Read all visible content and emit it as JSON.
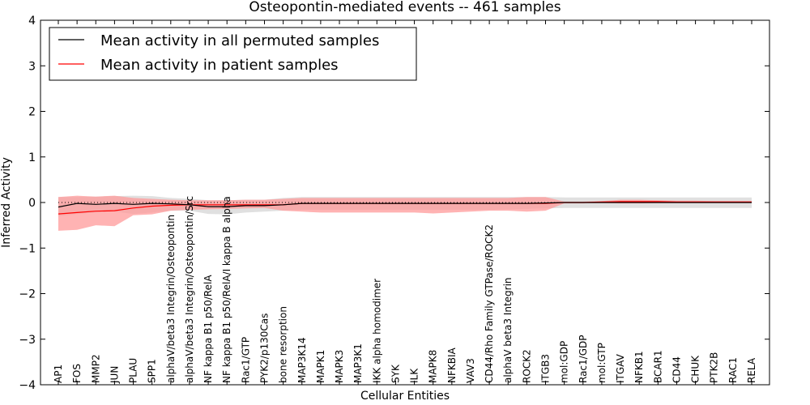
{
  "chart_data": {
    "type": "line",
    "title": "Osteopontin-mediated events -- 461 samples",
    "xlabel": "Cellular Entities",
    "ylabel": "Inferred Activity",
    "ylim": [
      -4,
      4
    ],
    "yticks": [
      -4,
      -3,
      -2,
      -1,
      0,
      1,
      2,
      3,
      4
    ],
    "ytick_labels": [
      "−4",
      "−3",
      "−2",
      "−1",
      "0",
      "1",
      "2",
      "3",
      "4"
    ],
    "legend_position": "top-left",
    "categories": [
      "AP1",
      "FOS",
      "MMP2",
      "JUN",
      "PLAU",
      "SPP1",
      "alphaV/beta3 Integrin/Osteopontin",
      "alphaV/beta3 Integrin/Osteopontin/Src",
      "NF kappa B1 p50/RelA",
      "NF kappa B1 p50/RelA/I kappa B alpha",
      "Rac1/GTP",
      "PYK2/p130Cas",
      "bone resorption",
      "MAP3K14",
      "MAPK1",
      "MAPK3",
      "MAP3K1",
      "IKK alpha homodimer",
      "SYK",
      "ILK",
      "MAPK8",
      "NFKBIA",
      "VAV3",
      "CD44/Rho Family GTPase/ROCK2",
      "alphaV beta3 Integrin",
      "ROCK2",
      "ITGB3",
      "mol:GDP",
      "Rac1/GDP",
      "mol:GTP",
      "ITGAV",
      "NFKB1",
      "BCAR1",
      "CD44",
      "CHUK",
      "PTK2B",
      "RAC1",
      "RELA"
    ],
    "series": [
      {
        "name": "Mean activity in all permuted samples",
        "color": "#000000",
        "band_color": "#bbbbbb",
        "values": [
          -0.1,
          -0.02,
          -0.04,
          -0.02,
          -0.04,
          -0.02,
          -0.03,
          -0.05,
          -0.09,
          -0.09,
          -0.07,
          -0.07,
          -0.05,
          -0.02,
          -0.02,
          -0.02,
          -0.02,
          -0.02,
          -0.02,
          -0.02,
          -0.02,
          -0.02,
          -0.02,
          -0.02,
          -0.02,
          -0.02,
          -0.01,
          0.0,
          0.0,
          0.0,
          0.0,
          0.0,
          0.0,
          0.0,
          0.0,
          0.0,
          0.0,
          0.0
        ],
        "band_upper": [
          0.12,
          0.12,
          0.13,
          0.14,
          0.15,
          0.14,
          0.1,
          0.08,
          0.05,
          0.05,
          0.06,
          0.06,
          0.1,
          0.12,
          0.12,
          0.12,
          0.12,
          0.12,
          0.12,
          0.12,
          0.12,
          0.12,
          0.12,
          0.12,
          0.12,
          0.12,
          0.12,
          0.11,
          0.11,
          0.11,
          0.11,
          0.11,
          0.11,
          0.11,
          0.11,
          0.11,
          0.11,
          0.11
        ],
        "band_lower": [
          -0.3,
          -0.25,
          -0.22,
          -0.2,
          -0.25,
          -0.22,
          -0.18,
          -0.18,
          -0.25,
          -0.26,
          -0.22,
          -0.2,
          -0.18,
          -0.16,
          -0.16,
          -0.16,
          -0.16,
          -0.16,
          -0.16,
          -0.16,
          -0.16,
          -0.16,
          -0.16,
          -0.16,
          -0.15,
          -0.14,
          -0.13,
          -0.12,
          -0.12,
          -0.12,
          -0.12,
          -0.12,
          -0.12,
          -0.12,
          -0.12,
          -0.12,
          -0.12,
          -0.12
        ]
      },
      {
        "name": "Mean activity in patient samples",
        "color": "#ff0000",
        "band_color": "#ff9999",
        "values": [
          -0.25,
          -0.22,
          -0.19,
          -0.18,
          -0.12,
          -0.08,
          -0.06,
          -0.05,
          -0.05,
          -0.05,
          -0.05,
          -0.05,
          -0.05,
          -0.02,
          -0.02,
          -0.02,
          -0.02,
          -0.02,
          -0.02,
          -0.02,
          -0.02,
          -0.02,
          -0.02,
          -0.02,
          -0.02,
          -0.02,
          -0.02,
          0.0,
          0.0,
          0.01,
          0.02,
          0.02,
          0.02,
          0.01,
          0.01,
          0.01,
          0.01,
          0.01
        ],
        "band_upper": [
          0.12,
          0.15,
          0.13,
          0.15,
          0.1,
          0.08,
          0.06,
          0.05,
          0.05,
          0.05,
          0.06,
          0.06,
          0.08,
          0.1,
          0.1,
          0.1,
          0.1,
          0.1,
          0.1,
          0.1,
          0.1,
          0.1,
          0.1,
          0.1,
          0.1,
          0.12,
          0.12,
          0.02,
          0.02,
          0.03,
          0.06,
          0.06,
          0.05,
          0.04,
          0.04,
          0.03,
          0.03,
          0.03
        ],
        "band_lower": [
          -0.62,
          -0.6,
          -0.5,
          -0.52,
          -0.28,
          -0.26,
          -0.18,
          -0.16,
          -0.15,
          -0.14,
          -0.13,
          -0.12,
          -0.18,
          -0.2,
          -0.22,
          -0.22,
          -0.22,
          -0.22,
          -0.22,
          -0.22,
          -0.24,
          -0.22,
          -0.2,
          -0.18,
          -0.18,
          -0.2,
          -0.18,
          -0.02,
          -0.02,
          -0.01,
          -0.02,
          -0.02,
          -0.01,
          -0.01,
          -0.01,
          -0.01,
          -0.01,
          -0.01
        ]
      }
    ],
    "reference_line": {
      "y": 0,
      "style": "dotted"
    }
  }
}
